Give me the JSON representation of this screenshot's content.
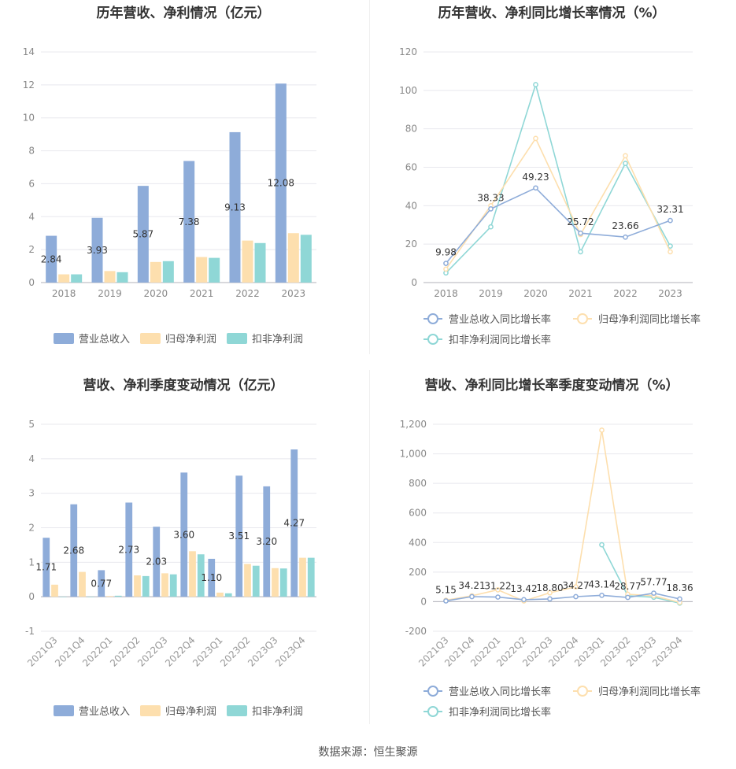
{
  "source_text": "数据来源：恒生聚源",
  "chart_data": [
    {
      "type": "bar",
      "title": "历年营收、净利情况（亿元）",
      "categories": [
        "2018",
        "2019",
        "2020",
        "2021",
        "2022",
        "2023"
      ],
      "ylim": [
        0,
        14
      ],
      "yticks": [
        "0",
        "2",
        "4",
        "6",
        "8",
        "10",
        "12",
        "14"
      ],
      "series": [
        {
          "name": "营业总收入",
          "values": [
            2.84,
            3.93,
            5.87,
            7.38,
            9.13,
            12.08
          ],
          "color": "#8eacd9"
        },
        {
          "name": "归母净利润",
          "values": [
            0.5,
            0.7,
            1.25,
            1.55,
            2.55,
            3.0
          ],
          "color": "#fddfae"
        },
        {
          "name": "扣非净利润",
          "values": [
            0.5,
            0.63,
            1.3,
            1.5,
            2.4,
            2.9
          ],
          "color": "#8fd7d6"
        }
      ],
      "data_labels": [
        "2.84",
        "3.93",
        "5.87",
        "7.38",
        "9.13",
        "12.08"
      ],
      "grid": true,
      "legend": "bottom"
    },
    {
      "type": "line",
      "title": "历年营收、净利同比增长率情况（%）",
      "categories": [
        "2018",
        "2019",
        "2020",
        "2021",
        "2022",
        "2023"
      ],
      "ylim": [
        0,
        120
      ],
      "yticks": [
        "0",
        "20",
        "40",
        "60",
        "80",
        "100",
        "120"
      ],
      "series": [
        {
          "name": "营业总收入同比增长率",
          "values": [
            9.98,
            38.33,
            49.23,
            25.72,
            23.66,
            32.31
          ],
          "color": "#8eacd9"
        },
        {
          "name": "归母净利润同比增长率",
          "values": [
            7,
            40,
            75,
            25,
            66,
            16
          ],
          "color": "#fddfae"
        },
        {
          "name": "扣非净利润同比增长率",
          "values": [
            5,
            29,
            103,
            16,
            62,
            19
          ],
          "color": "#8fd7d6"
        }
      ],
      "data_labels": [
        "9.98",
        "38.33",
        "49.23",
        "25.72",
        "23.66",
        "32.31"
      ],
      "grid": true,
      "legend": "bottom"
    },
    {
      "type": "bar",
      "title": "营收、净利季度变动情况（亿元）",
      "categories": [
        "2021Q3",
        "2021Q4",
        "2022Q1",
        "2022Q2",
        "2022Q3",
        "2022Q4",
        "2023Q1",
        "2023Q2",
        "2023Q3",
        "2023Q4"
      ],
      "ylim": [
        -1,
        5
      ],
      "yticks": [
        "-1",
        "0",
        "1",
        "2",
        "3",
        "4",
        "5"
      ],
      "series": [
        {
          "name": "营业总收入",
          "values": [
            1.71,
            2.68,
            0.77,
            2.73,
            2.03,
            3.6,
            1.1,
            3.51,
            3.2,
            4.27
          ],
          "color": "#8eacd9"
        },
        {
          "name": "归母净利润",
          "values": [
            0.35,
            0.72,
            0.02,
            0.62,
            0.68,
            1.32,
            0.12,
            0.95,
            0.83,
            1.13
          ],
          "color": "#fddfae"
        },
        {
          "name": "扣非净利润",
          "values": [
            0.0,
            0.0,
            0.03,
            0.6,
            0.65,
            1.23,
            0.1,
            0.9,
            0.82,
            1.13
          ],
          "color": "#8fd7d6"
        }
      ],
      "data_labels": [
        "1.71",
        "2.68",
        "0.77",
        "2.73",
        "2.03",
        "3.60",
        "1.10",
        "3.51",
        "3.20",
        "4.27"
      ],
      "grid": true,
      "legend": "bottom"
    },
    {
      "type": "line",
      "title": "营收、净利同比增长率季度变动情况（%）",
      "categories": [
        "2021Q3",
        "2021Q4",
        "2022Q1",
        "2022Q2",
        "2022Q3",
        "2022Q4",
        "2023Q1",
        "2023Q2",
        "2023Q3",
        "2023Q4"
      ],
      "ylim": [
        -200,
        1200
      ],
      "yticks": [
        "-200",
        "0",
        "200",
        "400",
        "600",
        "800",
        "1,000",
        "1,200"
      ],
      "series": [
        {
          "name": "营业总收入同比增长率",
          "values": [
            5.15,
            34.21,
            31.22,
            13.42,
            18.8,
            34.27,
            43.14,
            28.77,
            57.77,
            18.36
          ],
          "color": "#8eacd9"
        },
        {
          "name": "归母净利润同比增长率",
          "values": [
            10,
            40,
            80,
            5,
            60,
            100,
            1160,
            50,
            40,
            -5
          ],
          "color": "#fddfae"
        },
        {
          "name": "扣非净利润同比增长率",
          "values": [
            null,
            null,
            null,
            null,
            null,
            null,
            385,
            40,
            30,
            -10
          ],
          "color": "#8fd7d6"
        }
      ],
      "data_labels": [
        "5.15",
        "34.21",
        "31.22",
        "13.42",
        "18.80",
        "34.27",
        "43.14",
        "28.77",
        "57.77",
        "18.36"
      ],
      "grid": true,
      "legend": "bottom"
    }
  ]
}
